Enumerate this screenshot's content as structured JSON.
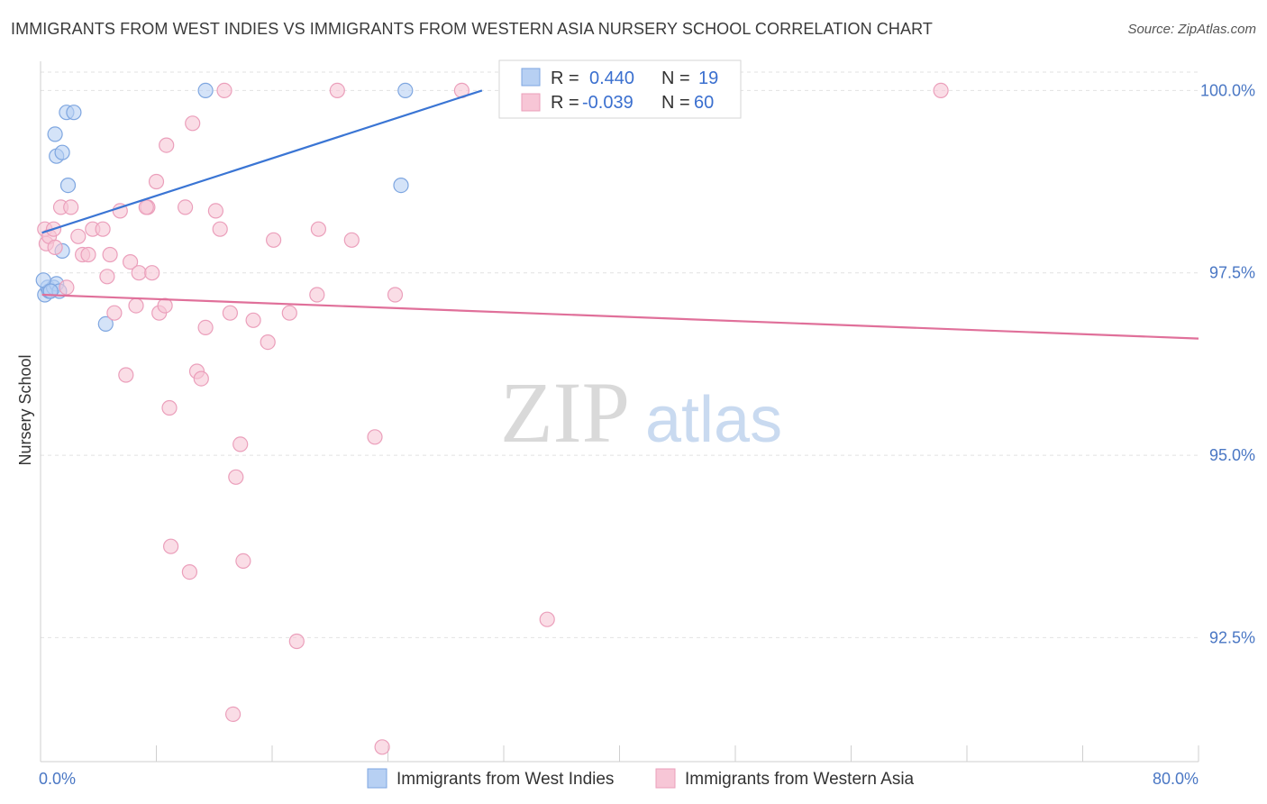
{
  "header": {
    "title": "IMMIGRANTS FROM WEST INDIES VS IMMIGRANTS FROM WESTERN ASIA NURSERY SCHOOL CORRELATION CHART",
    "source": "Source: ZipAtlas.com"
  },
  "watermark": {
    "zip": "ZIP",
    "atlas": "atlas"
  },
  "colors": {
    "blue": "#3a75d4",
    "blue_fill": "#b7d0f3",
    "pink": "#e0709a",
    "pink_fill": "#f7c6d6",
    "grid": "#e2e2e2",
    "tick_label": "#4a77c4"
  },
  "legend": {
    "r_label": "R =",
    "n_label": "N =",
    "rows": [
      {
        "series": "blue",
        "r": "0.440",
        "n": "19"
      },
      {
        "series": "pink",
        "r": "-0.039",
        "n": "60"
      }
    ]
  },
  "bottom_legend": [
    {
      "series": "blue",
      "label": "Immigrants from West Indies"
    },
    {
      "series": "pink",
      "label": "Immigrants from Western Asia"
    }
  ],
  "chart_data": {
    "type": "scatter",
    "title": "IMMIGRANTS FROM WEST INDIES VS IMMIGRANTS FROM WESTERN ASIA NURSERY SCHOOL CORRELATION CHART",
    "xlabel": "",
    "ylabel": "Nursery School",
    "xlim": [
      0,
      80
    ],
    "ylim": [
      90.8,
      100.4
    ],
    "x_tick_labels": [
      "0.0%",
      "80.0%"
    ],
    "y_ticks": [
      {
        "value": 100.0,
        "label": "100.0%"
      },
      {
        "value": 97.5,
        "label": "97.5%"
      },
      {
        "value": 95.0,
        "label": "95.0%"
      },
      {
        "value": 92.5,
        "label": "92.5%"
      }
    ],
    "grid": true,
    "legend_placement": "top-center",
    "series": [
      {
        "name": "Immigrants from West Indies",
        "color": "blue",
        "r": 0.44,
        "n": 19,
        "trend": [
          [
            0.1,
            98.05
          ],
          [
            30.5,
            100.0
          ]
        ],
        "points": [
          [
            0.3,
            97.2
          ],
          [
            0.5,
            97.3
          ],
          [
            0.6,
            97.25
          ],
          [
            0.9,
            97.3
          ],
          [
            1.1,
            97.35
          ],
          [
            1.3,
            97.25
          ],
          [
            1.5,
            97.8
          ],
          [
            1.0,
            99.4
          ],
          [
            1.1,
            99.1
          ],
          [
            1.5,
            99.15
          ],
          [
            1.9,
            98.7
          ],
          [
            1.8,
            99.7
          ],
          [
            2.3,
            99.7
          ],
          [
            4.5,
            96.8
          ],
          [
            11.4,
            100.0
          ],
          [
            24.9,
            98.7
          ],
          [
            25.2,
            100.0
          ],
          [
            0.2,
            97.4
          ],
          [
            0.7,
            97.25
          ]
        ]
      },
      {
        "name": "Immigrants from Western Asia",
        "color": "pink",
        "r": -0.039,
        "n": 60,
        "trend": [
          [
            0.1,
            97.2
          ],
          [
            80.0,
            96.6
          ]
        ],
        "points": [
          [
            0.3,
            98.1
          ],
          [
            0.4,
            97.9
          ],
          [
            0.6,
            98.0
          ],
          [
            0.9,
            98.1
          ],
          [
            1.0,
            97.85
          ],
          [
            1.4,
            98.4
          ],
          [
            1.8,
            97.3
          ],
          [
            2.1,
            98.4
          ],
          [
            2.6,
            98.0
          ],
          [
            2.9,
            97.75
          ],
          [
            3.3,
            97.75
          ],
          [
            3.6,
            98.1
          ],
          [
            4.3,
            98.1
          ],
          [
            4.6,
            97.45
          ],
          [
            4.8,
            97.75
          ],
          [
            5.1,
            96.95
          ],
          [
            5.5,
            98.35
          ],
          [
            5.9,
            96.1
          ],
          [
            6.2,
            97.65
          ],
          [
            6.6,
            97.05
          ],
          [
            6.8,
            97.5
          ],
          [
            7.4,
            98.4
          ],
          [
            7.7,
            97.5
          ],
          [
            8.2,
            96.95
          ],
          [
            8.0,
            98.75
          ],
          [
            8.6,
            97.05
          ],
          [
            8.7,
            99.25
          ],
          [
            8.9,
            95.65
          ],
          [
            9.0,
            93.75
          ],
          [
            10.0,
            98.4
          ],
          [
            10.3,
            93.4
          ],
          [
            10.5,
            99.55
          ],
          [
            10.8,
            96.15
          ],
          [
            11.1,
            96.05
          ],
          [
            11.4,
            96.75
          ],
          [
            12.1,
            98.35
          ],
          [
            12.4,
            98.1
          ],
          [
            12.7,
            100.0
          ],
          [
            13.1,
            96.95
          ],
          [
            13.3,
            91.45
          ],
          [
            13.5,
            94.7
          ],
          [
            13.8,
            95.15
          ],
          [
            14.0,
            93.55
          ],
          [
            14.7,
            96.85
          ],
          [
            15.7,
            96.55
          ],
          [
            16.1,
            97.95
          ],
          [
            17.2,
            96.95
          ],
          [
            17.7,
            92.45
          ],
          [
            19.1,
            97.2
          ],
          [
            19.2,
            98.1
          ],
          [
            20.5,
            100.0
          ],
          [
            21.5,
            97.95
          ],
          [
            23.1,
            95.25
          ],
          [
            23.6,
            91.0
          ],
          [
            24.5,
            97.2
          ],
          [
            29.1,
            100.0
          ],
          [
            35.0,
            92.75
          ],
          [
            42.6,
            100.0
          ],
          [
            62.2,
            100.0
          ],
          [
            7.3,
            98.4
          ]
        ]
      }
    ]
  }
}
